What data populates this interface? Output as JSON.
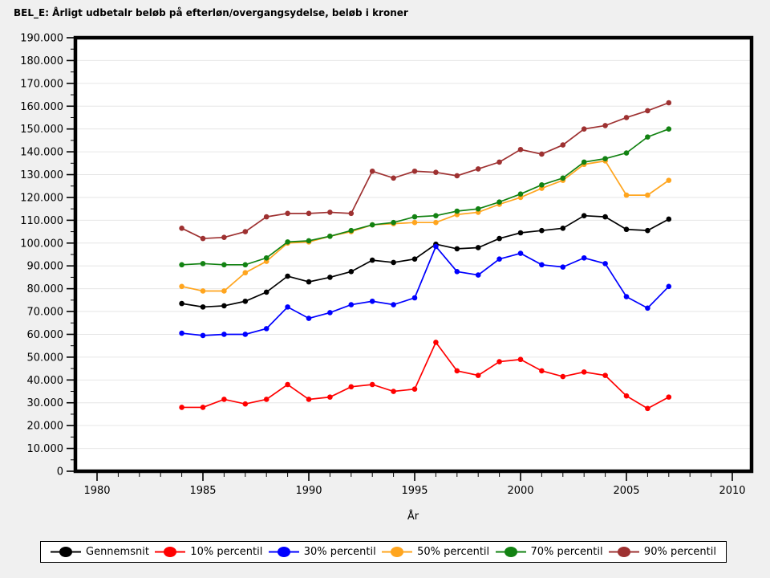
{
  "window": {
    "background": "#F0F0F0",
    "plot_background": "#FFFFFF",
    "frame_color": "#000000",
    "gridline_color": "#E6E6E6"
  },
  "header": {
    "title": "BEL_E: Årligt udbetalr beløb på efterløn/overgangsydelse, beløb i kroner"
  },
  "chart_data": {
    "type": "line",
    "title": "BEL_E: Årligt udbetalr beløb på efterløn/overgangsydelse, beløb i kroner",
    "xlabel": "År",
    "ylabel": "",
    "xlim": [
      1979,
      2011
    ],
    "ylim": [
      0,
      190000
    ],
    "x_major_ticks": [
      1980,
      1985,
      1990,
      1995,
      2000,
      2005,
      2010
    ],
    "x_tick_labels": [
      "1980",
      "1985",
      "1990",
      "1995",
      "2000",
      "2005",
      "2010"
    ],
    "x_minor_step": 1,
    "y_major_step": 10000,
    "y_minor_step": 5000,
    "y_tick_labels": [
      "0",
      "10.000",
      "20.000",
      "30.000",
      "40.000",
      "50.000",
      "60.000",
      "70.000",
      "80.000",
      "90.000",
      "100.000",
      "110.000",
      "120.000",
      "130.000",
      "140.000",
      "150.000",
      "160.000",
      "170.000",
      "180.000",
      "190.000"
    ],
    "grid": "horizontal-major",
    "legend_position": "bottom",
    "x": [
      1984,
      1985,
      1986,
      1987,
      1988,
      1989,
      1990,
      1991,
      1992,
      1993,
      1994,
      1995,
      1996,
      1997,
      1998,
      1999,
      2000,
      2001,
      2002,
      2003,
      2004,
      2005,
      2006,
      2007
    ],
    "series": [
      {
        "name": "Gennemsnit",
        "color": "#000000",
        "values": [
          73500,
          72000,
          72500,
          74500,
          78500,
          85500,
          83000,
          85000,
          87500,
          92500,
          91500,
          93000,
          99500,
          97500,
          98000,
          102000,
          104500,
          105500,
          106500,
          112000,
          111500,
          106000,
          105500,
          110500
        ]
      },
      {
        "name": "10% percentil",
        "color": "#FF0000",
        "values": [
          28000,
          28000,
          31500,
          29500,
          31500,
          38000,
          31500,
          32500,
          37000,
          38000,
          35000,
          36000,
          56500,
          44000,
          42000,
          48000,
          49000,
          44000,
          41500,
          43500,
          42000,
          33000,
          27500,
          32500
        ]
      },
      {
        "name": "30% percentil",
        "color": "#0000FF",
        "values": [
          60500,
          59500,
          60000,
          60000,
          62500,
          72000,
          67000,
          69500,
          73000,
          74500,
          73000,
          76000,
          98500,
          87500,
          86000,
          93000,
          95500,
          90500,
          89500,
          93500,
          91000,
          76500,
          71500,
          81000
        ]
      },
      {
        "name": "50% percentil",
        "color": "#FFA51E",
        "values": [
          81000,
          79000,
          79000,
          87000,
          92000,
          100000,
          100500,
          103000,
          105000,
          108000,
          108500,
          109000,
          109000,
          112500,
          113500,
          117000,
          120000,
          124000,
          127500,
          134500,
          136000,
          121000,
          121000,
          127500
        ]
      },
      {
        "name": "70% percentil",
        "color": "#128212",
        "values": [
          90500,
          91000,
          90500,
          90500,
          93500,
          100500,
          101000,
          103000,
          105500,
          108000,
          109000,
          111500,
          112000,
          114000,
          115000,
          118000,
          121500,
          125500,
          128500,
          135500,
          137000,
          139500,
          146500,
          150000
        ]
      },
      {
        "name": "90% percentil",
        "color": "#9E3131",
        "values": [
          106500,
          102000,
          102500,
          105000,
          111500,
          113000,
          113000,
          113500,
          113000,
          131500,
          128500,
          131500,
          131000,
          129500,
          132500,
          135500,
          141000,
          139000,
          143000,
          150000,
          151500,
          155000,
          158000,
          161500
        ]
      }
    ]
  }
}
